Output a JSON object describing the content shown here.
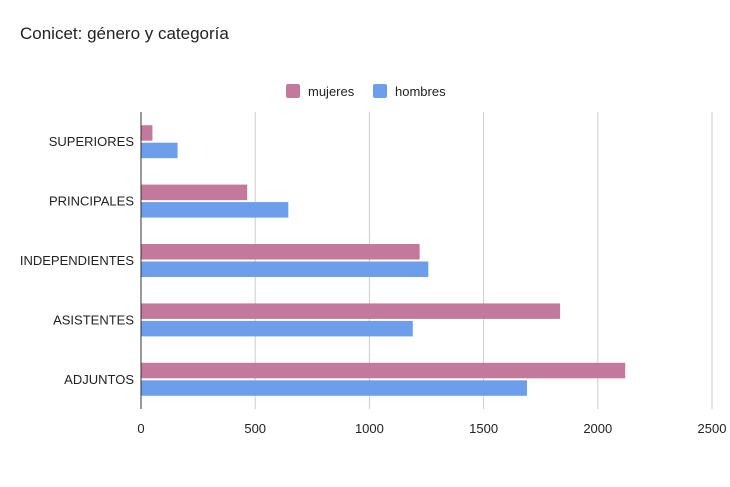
{
  "chart_data": {
    "type": "bar",
    "orientation": "horizontal",
    "title": "Conicet: género y categoría",
    "xlabel": "",
    "ylabel": "",
    "categories": [
      "SUPERIORES",
      "PRINCIPALES",
      "INDEPENDIENTES",
      "ASISTENTES",
      "ADJUNTOS"
    ],
    "series": [
      {
        "name": "mujeres",
        "color": "#c2799b",
        "values": [
          50,
          465,
          1220,
          1835,
          2120
        ]
      },
      {
        "name": "hombres",
        "color": "#6d9eeb",
        "values": [
          160,
          645,
          1258,
          1190,
          1690
        ]
      }
    ],
    "xlim": [
      0,
      2500
    ],
    "xticks": [
      "0",
      "500",
      "1000",
      "1500",
      "2000",
      "2500"
    ],
    "grid": true,
    "legend_position": "top"
  }
}
